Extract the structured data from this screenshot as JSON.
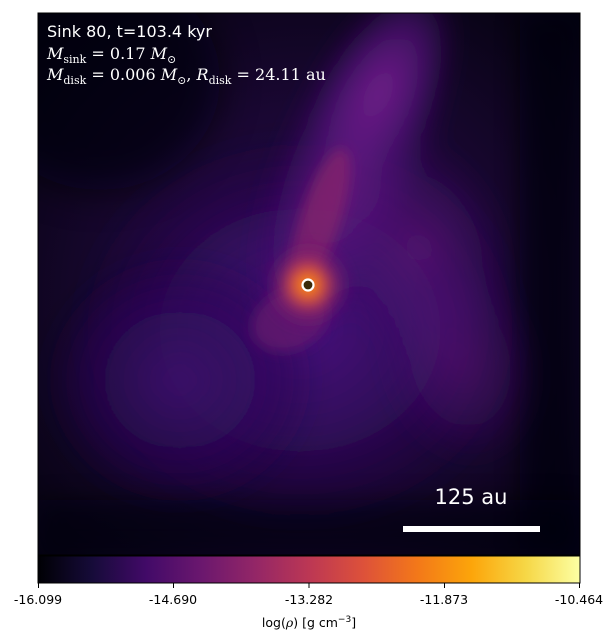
{
  "figure": {
    "title_line": "Sink 80, t=103.4 kyr",
    "sink_mass": {
      "symbol": "M",
      "subscript": "sink",
      "value": "0.17",
      "unit": "M",
      "unit_subscript": "⊙"
    },
    "disk": {
      "mass_symbol": "M",
      "mass_subscript": "disk",
      "mass_value": "0.006",
      "mass_unit": "M",
      "mass_unit_subscript": "⊙",
      "radius_symbol": "R",
      "radius_subscript": "disk",
      "radius_value": "24.11",
      "radius_unit": "au"
    },
    "scale_bar_label": "125 au",
    "sink_marker": "sink-particle-ring"
  },
  "colorbar": {
    "colormap": "inferno",
    "ticks": [
      "-16.099",
      "-14.690",
      "-13.282",
      "-11.873",
      "-10.464"
    ],
    "label_prefix": "log(",
    "label_symbol": "ρ",
    "label_suffix": ") [g cm",
    "label_exponent": "−3",
    "label_close": "]"
  },
  "colors": {
    "text": "#ffffff",
    "scale_bar": "#ffffff",
    "sink_ring": "#ffffff",
    "sink_core": "#3a2a0a"
  }
}
